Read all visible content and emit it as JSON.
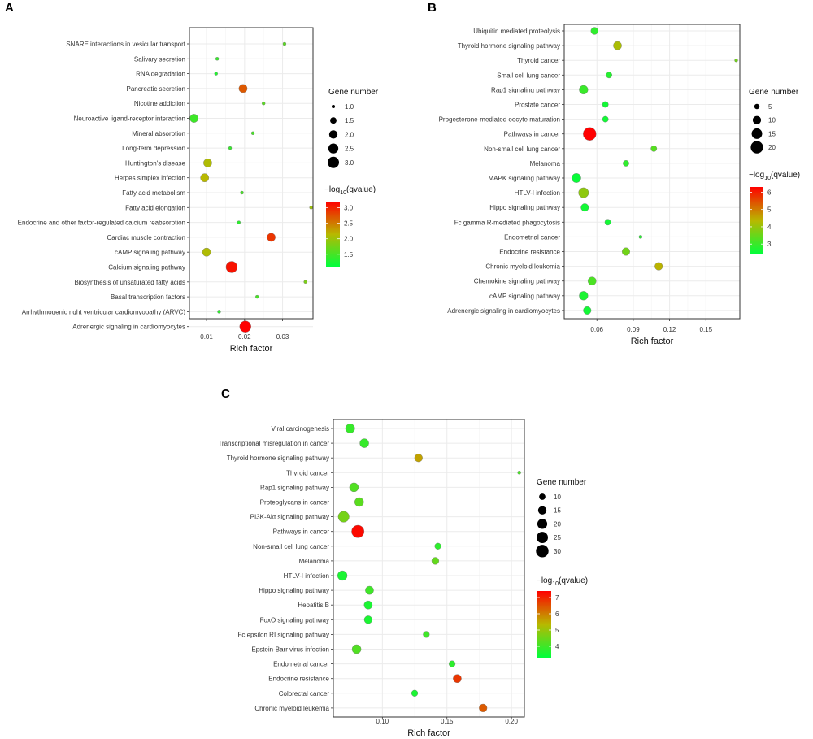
{
  "colors": {
    "low": "#00ff3c",
    "mid": "#b8b800",
    "high": "#ff0000",
    "grid": "#ebebeb",
    "frame": "#333333",
    "point_outline": "#7a7a7a"
  },
  "chart_data": [
    {
      "type": "scatter",
      "panel_label": "A",
      "xlabel": "Rich factor",
      "xlim": [
        0.0055,
        0.038
      ],
      "xticks": [
        0.01,
        0.02,
        0.03
      ],
      "x_tick_labels": [
        "0.01",
        "0.02",
        "0.03"
      ],
      "size_legend_title": "Gene number",
      "size_legend_values": [
        1.0,
        1.5,
        2.0,
        2.5,
        3.0
      ],
      "size_legend_labels": [
        "1.0",
        "1.5",
        "2.0",
        "2.5",
        "3.0"
      ],
      "size_range": [
        1,
        3
      ],
      "color_legend_title_parts": [
        "−log",
        "10",
        "(qvalue)"
      ],
      "color_range": [
        1.1,
        3.2
      ],
      "color_ticks": [
        1.5,
        2.0,
        2.5,
        3.0
      ],
      "color_tick_labels": [
        "1.5",
        "2.0",
        "2.5",
        "3.0"
      ],
      "categories": [
        "SNARE interactions in vesicular transport",
        "Salivary secretion",
        "RNA degradation",
        "Pancreatic secretion",
        "Nicotine addiction",
        "Neuroactive ligand-receptor interaction",
        "Mineral absorption",
        "Long-term depression",
        "Huntington's disease",
        "Herpes simplex infection",
        "Fatty acid metabolism",
        "Fatty acid elongation",
        "Endocrine and other factor-regulated calcium reabsorption",
        "Cardiac muscle contraction",
        "cAMP signaling pathway",
        "Calcium signaling pathway",
        "Biosynthesis of unsaturated fatty acids",
        "Basal transcription factors",
        "Arrhythmogenic right ventricular cardiomyopathy (ARVC)",
        "Adrenergic signaling in cardiomyocytes"
      ],
      "x": [
        0.0305,
        0.0128,
        0.0125,
        0.0196,
        0.025,
        0.0067,
        0.0222,
        0.0162,
        0.0103,
        0.0095,
        0.0193,
        0.0375,
        0.0185,
        0.027,
        0.01,
        0.0166,
        0.036,
        0.0233,
        0.0133,
        0.0202
      ],
      "gene_number": [
        1,
        1,
        1,
        2,
        1,
        2,
        1,
        1,
        2,
        2,
        1,
        1,
        1,
        2,
        2,
        3,
        1,
        1,
        1,
        3
      ],
      "neg_log10_qvalue": [
        1.6,
        1.4,
        1.3,
        2.7,
        1.6,
        1.45,
        1.5,
        1.4,
        2.1,
        2.15,
        1.5,
        2.0,
        1.35,
        2.9,
        2.1,
        3.1,
        1.8,
        1.5,
        1.35,
        3.2
      ]
    },
    {
      "type": "scatter",
      "panel_label": "B",
      "xlabel": "Rich factor",
      "xlim": [
        0.033,
        0.178
      ],
      "xticks": [
        0.06,
        0.09,
        0.12,
        0.15
      ],
      "x_tick_labels": [
        "0.06",
        "0.09",
        "0.12",
        "0.15"
      ],
      "size_legend_title": "Gene number",
      "size_legend_values": [
        5,
        10,
        15,
        20
      ],
      "size_legend_labels": [
        "5",
        "10",
        "15",
        "20"
      ],
      "size_range": [
        3,
        22
      ],
      "color_legend_title_parts": [
        "−log",
        "10",
        "(qvalue)"
      ],
      "color_range": [
        2.4,
        6.3
      ],
      "color_ticks": [
        3,
        4,
        5,
        6
      ],
      "color_tick_labels": [
        "3",
        "4",
        "5",
        "6"
      ],
      "categories": [
        "Ubiquitin mediated proteolysis",
        "Thyroid hormone signaling pathway",
        "Thyroid cancer",
        "Small cell lung cancer",
        "Rap1 signaling pathway",
        "Prostate cancer",
        "Progesterone-mediated oocyte maturation",
        "Pathways in cancer",
        "Non-small cell lung cancer",
        "Melanoma",
        "MAPK signaling pathway",
        "HTLV-I infection",
        "Hippo signaling pathway",
        "Fc gamma R-mediated phagocytosis",
        "Endometrial cancer",
        "Endocrine resistance",
        "Chronic myeloid leukemia",
        "Chemokine signaling pathway",
        "cAMP signaling pathway",
        "Adrenergic signaling in cardiomyocytes"
      ],
      "x": [
        0.058,
        0.077,
        0.175,
        0.07,
        0.049,
        0.067,
        0.067,
        0.054,
        0.107,
        0.084,
        0.043,
        0.049,
        0.05,
        0.069,
        0.096,
        0.084,
        0.111,
        0.056,
        0.049,
        0.052
      ],
      "gene_number": [
        8,
        10,
        3,
        6,
        11,
        6,
        6,
        22,
        6,
        6,
        12,
        14,
        9,
        6,
        3,
        9,
        9,
        10,
        11,
        9
      ],
      "neg_log10_qvalue": [
        2.9,
        4.2,
        3.6,
        2.8,
        3.0,
        2.6,
        2.6,
        6.3,
        3.3,
        2.9,
        2.5,
        3.9,
        2.6,
        2.6,
        2.8,
        3.6,
        4.4,
        3.2,
        2.7,
        2.6
      ]
    },
    {
      "type": "scatter",
      "panel_label": "C",
      "xlabel": "Rich factor",
      "xlim": [
        0.062,
        0.21
      ],
      "xticks": [
        0.1,
        0.15,
        0.2
      ],
      "x_tick_labels": [
        "0.10",
        "0.15",
        "0.20"
      ],
      "size_legend_title": "Gene number",
      "size_legend_values": [
        10,
        15,
        20,
        25,
        30
      ],
      "size_legend_labels": [
        "10",
        "15",
        "20",
        "25",
        "30"
      ],
      "size_range": [
        5,
        32
      ],
      "color_legend_title_parts": [
        "−log",
        "10",
        "(qvalue)"
      ],
      "color_range": [
        3.3,
        7.4
      ],
      "color_ticks": [
        4,
        5,
        6,
        7
      ],
      "color_tick_labels": [
        "4",
        "5",
        "6",
        "7"
      ],
      "categories": [
        "Viral carcinogenesis",
        "Transcriptional misregulation in cancer",
        "Thyroid hormone signaling pathway",
        "Thyroid cancer",
        "Rap1 signaling pathway",
        "Proteoglycans in cancer",
        "PI3K-Akt signaling pathway",
        "Pathways in cancer",
        "Non-small cell lung cancer",
        "Melanoma",
        "HTLV-I infection",
        "Hippo signaling pathway",
        "Hepatitis B",
        "FoxO signaling pathway",
        "Fc epsilon RI signaling pathway",
        "Epstein-Barr virus infection",
        "Endometrial cancer",
        "Endocrine resistance",
        "Colorectal cancer",
        "Chronic myeloid leukemia"
      ],
      "x": [
        0.075,
        0.086,
        0.128,
        0.206,
        0.078,
        0.082,
        0.07,
        0.081,
        0.143,
        0.141,
        0.069,
        0.09,
        0.089,
        0.089,
        0.134,
        0.08,
        0.154,
        0.158,
        0.125,
        0.178
      ],
      "gene_number": [
        18,
        17,
        14,
        5,
        17,
        17,
        24,
        30,
        10,
        12,
        19,
        15,
        15,
        14,
        10,
        17,
        10,
        15,
        10,
        14
      ],
      "neg_log10_qvalue": [
        3.9,
        3.9,
        5.6,
        4.1,
        4.2,
        4.3,
        4.6,
        7.3,
        3.8,
        4.4,
        3.6,
        4.0,
        3.6,
        3.6,
        4.0,
        4.2,
        3.8,
        6.8,
        3.6,
        6.4
      ]
    }
  ]
}
